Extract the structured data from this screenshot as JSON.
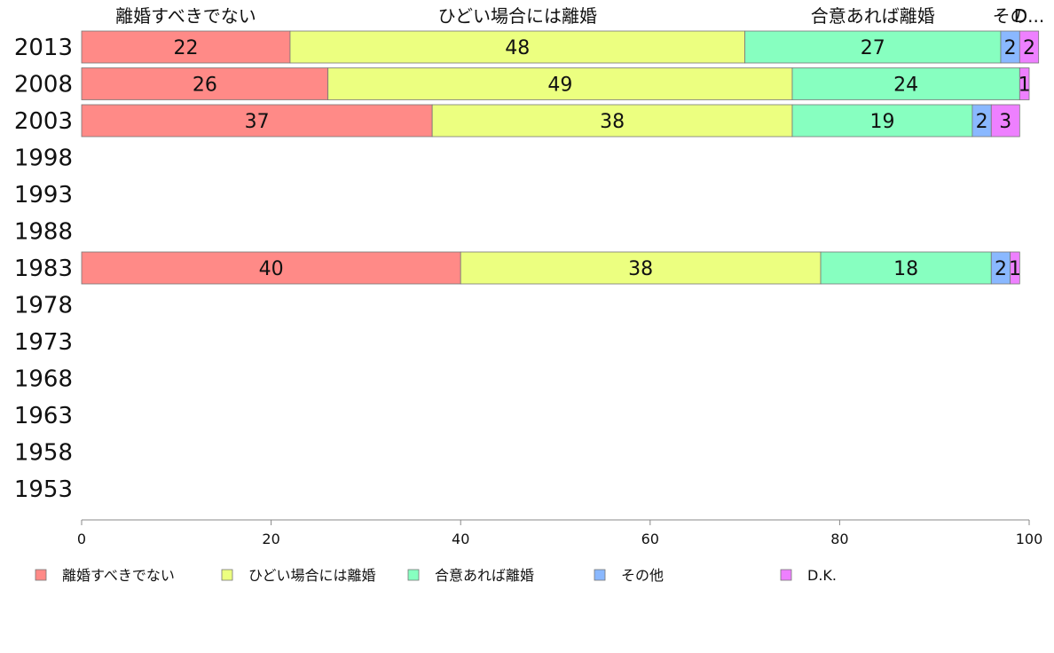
{
  "chart_data": {
    "type": "bar",
    "orientation": "horizontal",
    "stacked": true,
    "categories": [
      "2013",
      "2008",
      "2003",
      "1998",
      "1993",
      "1988",
      "1983",
      "1978",
      "1973",
      "1968",
      "1963",
      "1958",
      "1953"
    ],
    "series": [
      {
        "name": "離婚すべきでない",
        "color": "#ff8a87",
        "values": [
          22,
          26,
          37,
          null,
          null,
          null,
          40,
          null,
          null,
          null,
          null,
          null,
          null
        ]
      },
      {
        "name": "ひどい場合には離婚",
        "color": "#ecff80",
        "values": [
          48,
          49,
          38,
          null,
          null,
          null,
          38,
          null,
          null,
          null,
          null,
          null,
          null
        ]
      },
      {
        "name": "合意あれば離婚",
        "color": "#87ffc0",
        "values": [
          27,
          24,
          19,
          null,
          null,
          null,
          18,
          null,
          null,
          null,
          null,
          null,
          null
        ]
      },
      {
        "name": "その他",
        "color": "#8ab8ff",
        "values": [
          2,
          0,
          2,
          null,
          null,
          null,
          2,
          null,
          null,
          null,
          null,
          null,
          null
        ]
      },
      {
        "name": "D.K.",
        "color": "#ee80ff",
        "values": [
          2,
          1,
          3,
          null,
          null,
          null,
          1,
          null,
          null,
          null,
          null,
          null,
          null
        ]
      }
    ],
    "top_labels": [
      "離婚すべきでない",
      "ひどい場合には離婚",
      "合意あれば離婚",
      "その他",
      "D.K."
    ],
    "top_labels_display": [
      "離婚すべきでない",
      "ひどい場合には離婚",
      "合意あれば離婚",
      "その",
      "D..."
    ],
    "xlim": [
      0,
      100
    ],
    "xticks": [
      0,
      20,
      40,
      60,
      80,
      100
    ],
    "grid": false,
    "legend_position": "bottom"
  }
}
